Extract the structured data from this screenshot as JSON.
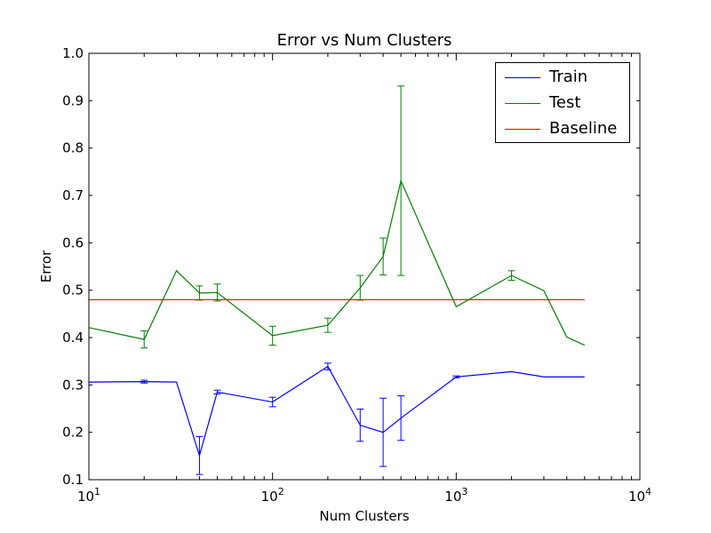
{
  "chart_data": {
    "type": "line",
    "title": "Error vs Num Clusters",
    "xlabel": "Num Clusters",
    "ylabel": "Error",
    "xscale": "log",
    "xlim": [
      10,
      10000
    ],
    "ylim": [
      0.1,
      1.0
    ],
    "x_ticks": [
      10,
      100,
      1000,
      10000
    ],
    "y_ticks": [
      0.1,
      0.2,
      0.3,
      0.4,
      0.5,
      0.6,
      0.7,
      0.8,
      0.9,
      1.0
    ],
    "y_tick_labels": [
      "0.1",
      "0.2",
      "0.3",
      "0.4",
      "0.5",
      "0.6",
      "0.7",
      "0.8",
      "0.9",
      "1.0"
    ],
    "grid": false,
    "legend_position": "top-right",
    "series": [
      {
        "name": "Train",
        "color": "#0000ff",
        "x": [
          10,
          20,
          30,
          40,
          50,
          100,
          200,
          300,
          400,
          500,
          1000,
          2000,
          3000,
          4000,
          5000
        ],
        "y": [
          0.306,
          0.307,
          0.306,
          0.151,
          0.285,
          0.264,
          0.339,
          0.215,
          0.2,
          0.23,
          0.317,
          0.328,
          0.317,
          0.317,
          0.317
        ],
        "err": [
          0.0,
          0.003,
          0.0,
          0.04,
          0.004,
          0.01,
          0.007,
          0.034,
          0.072,
          0.047,
          0.002,
          0.0,
          0.0,
          0.0,
          0.0
        ]
      },
      {
        "name": "Test",
        "color": "#008000",
        "x": [
          10,
          20,
          30,
          40,
          50,
          100,
          200,
          300,
          400,
          500,
          1000,
          2000,
          3000,
          4000,
          5000
        ],
        "y": [
          0.421,
          0.396,
          0.541,
          0.494,
          0.495,
          0.404,
          0.426,
          0.505,
          0.571,
          0.731,
          0.465,
          0.531,
          0.499,
          0.401,
          0.384
        ],
        "err": [
          0.0,
          0.018,
          0.0,
          0.015,
          0.018,
          0.02,
          0.015,
          0.026,
          0.039,
          0.2,
          0.0,
          0.01,
          0.0,
          0.0,
          0.0
        ]
      },
      {
        "name": "Baseline",
        "color": "#ff0000",
        "x": [
          10,
          5000
        ],
        "y": [
          0.48,
          0.48
        ],
        "err": [
          0,
          0
        ]
      }
    ]
  }
}
